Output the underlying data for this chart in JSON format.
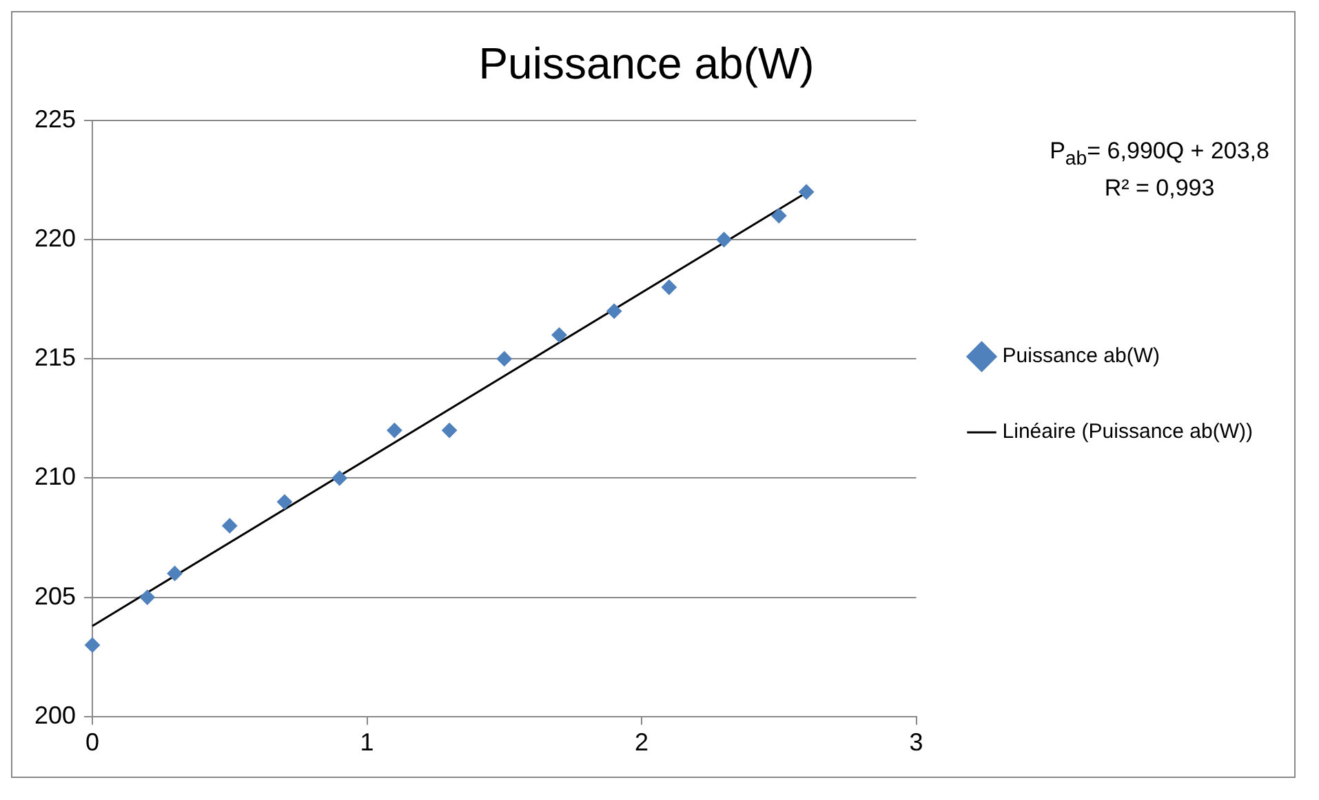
{
  "chart_data": {
    "type": "scatter",
    "title": "Puissance ab(W)",
    "xlim": [
      0,
      3
    ],
    "xticks": [
      0,
      1,
      2,
      3
    ],
    "ylim": [
      200,
      225
    ],
    "yticks": [
      200,
      205,
      210,
      215,
      220,
      225
    ],
    "grid": "y",
    "legend": "right",
    "annotations": [
      "P$_{ab}$= 6,990Q + 203,8",
      "R² = 0,993"
    ],
    "series": [
      {
        "name": "Puissance ab(W)",
        "type": "scatter",
        "marker": "diamond",
        "color": "#4f81bd",
        "x": [
          0,
          0.2,
          0.3,
          0.5,
          0.7,
          0.9,
          1.1,
          1.3,
          1.5,
          1.7,
          1.9,
          2.1,
          2.3,
          2.5,
          2.6
        ],
        "values": [
          203,
          205,
          206,
          208,
          209,
          210,
          212,
          212,
          215,
          216,
          217,
          218,
          220,
          221,
          222
        ]
      },
      {
        "name": "Linéaire (Puissance ab(W))",
        "type": "line",
        "marker": "none",
        "line_style": "solid",
        "color": "#000000",
        "x": [
          0,
          2.6
        ],
        "values": [
          203.8,
          221.97
        ]
      }
    ]
  }
}
